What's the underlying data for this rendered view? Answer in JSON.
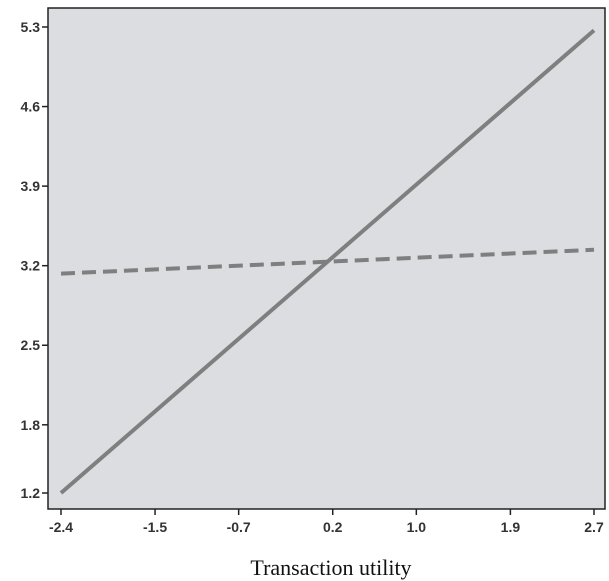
{
  "chart_data": {
    "type": "line",
    "title": "",
    "xlabel": "Transaction utility",
    "ylabel": "",
    "x_ticks": [
      "-2.4",
      "-1.5",
      "-0.7",
      "0.2",
      "1.0",
      "1.9",
      "2.7"
    ],
    "y_ticks": [
      "1.2",
      "1.8",
      "2.5",
      "3.2",
      "3.9",
      "4.6",
      "5.3"
    ],
    "xlim": [
      -2.4,
      2.7
    ],
    "ylim": [
      1.2,
      5.3
    ],
    "grid": false,
    "legend": "none",
    "background_color": "#dcdde0",
    "series": [
      {
        "style": "solid",
        "color": "#7f7f7f",
        "x": [
          -2.4,
          2.7
        ],
        "y": [
          1.2,
          5.27
        ]
      },
      {
        "style": "dashed",
        "color": "#7f7f7f",
        "x": [
          -2.4,
          2.7
        ],
        "y": [
          3.13,
          3.34
        ]
      }
    ]
  }
}
